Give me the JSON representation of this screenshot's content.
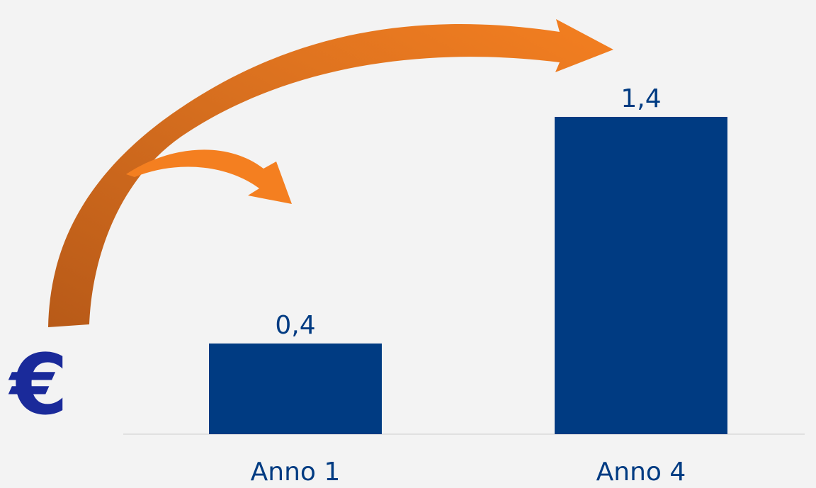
{
  "chart_data": {
    "type": "bar",
    "categories": [
      "Anno 1",
      "Anno 4"
    ],
    "values": [
      0.4,
      1.4
    ],
    "value_labels": [
      "0,4",
      "1,4"
    ],
    "title": "",
    "xlabel": "",
    "ylabel": "",
    "ylim": [
      0,
      2.0
    ],
    "grid": false,
    "legend": "none",
    "colors": {
      "bar": "#003b82",
      "label": "#003b82",
      "arrow": "#f47f20",
      "arrow_dark": "#c0601a",
      "axis": "#d9d9d9"
    }
  },
  "currency_symbol": "€"
}
